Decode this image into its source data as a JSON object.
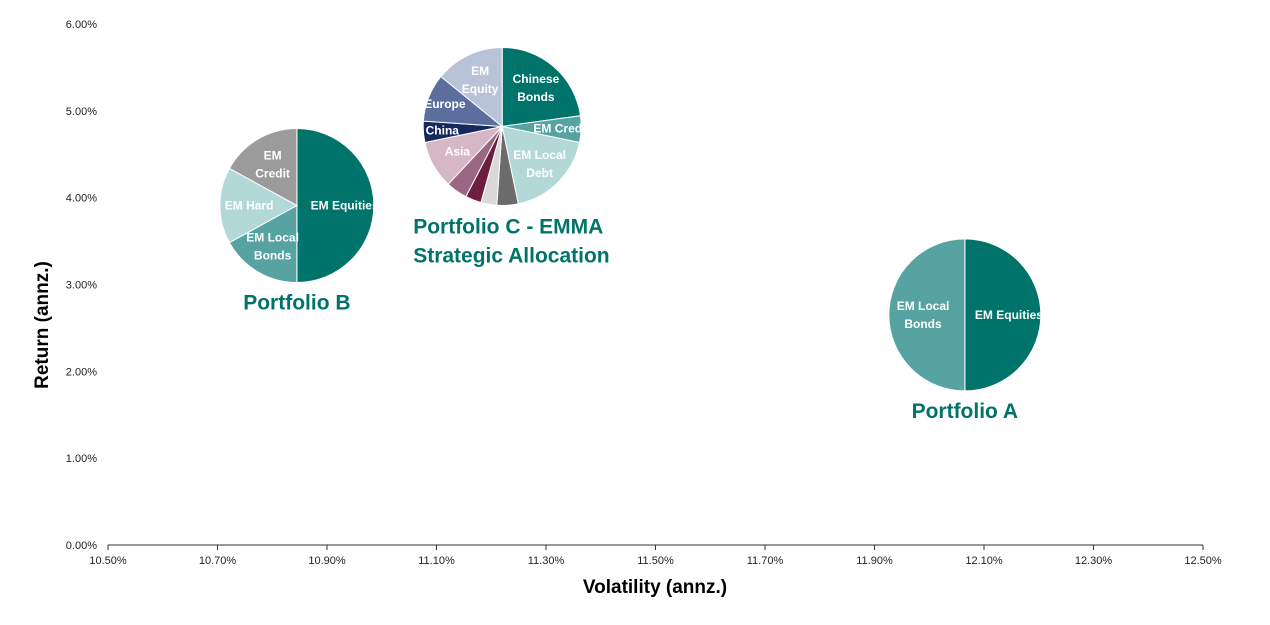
{
  "chart_data": {
    "type": "scatter",
    "subtype": "pie-bubbles",
    "title": "",
    "xlabel": "Volatility (annz.)",
    "ylabel": "Return (annz.)",
    "xlim": [
      0.105,
      0.125
    ],
    "ylim": [
      0.0,
      0.06
    ],
    "x_ticks": [
      0.105,
      0.107,
      0.109,
      0.111,
      0.113,
      0.115,
      0.117,
      0.119,
      0.121,
      0.123,
      0.125
    ],
    "x_tick_labels": [
      "10.50%",
      "10.70%",
      "10.90%",
      "11.10%",
      "11.30%",
      "11.50%",
      "11.70%",
      "11.90%",
      "12.10%",
      "12.30%",
      "12.50%"
    ],
    "y_ticks": [
      0.0,
      0.01,
      0.02,
      0.03,
      0.04,
      0.05,
      0.06
    ],
    "y_tick_labels": [
      "0.00%",
      "1.00%",
      "2.00%",
      "3.00%",
      "4.00%",
      "5.00%",
      "6.00%"
    ],
    "grid": false,
    "legend": "none",
    "label_color": "#00736A",
    "points": [
      {
        "name": "Portfolio A",
        "label_lines": [
          "Portfolio A"
        ],
        "x": 0.12065,
        "y": 0.0265,
        "slices": [
          {
            "label_lines": [
              "EM Equities"
            ],
            "value": 50,
            "color": "#00736A",
            "text_color": "#ffffff"
          },
          {
            "label_lines": [
              "EM Local",
              "Bonds"
            ],
            "value": 50,
            "color": "#56A3A2",
            "text_color": "#ffffff"
          }
        ]
      },
      {
        "name": "Portfolio B",
        "label_lines": [
          "Portfolio B"
        ],
        "x": 0.10845,
        "y": 0.0391,
        "slices": [
          {
            "label_lines": [
              "EM Equities"
            ],
            "value": 50,
            "color": "#00736A",
            "text_color": "#ffffff"
          },
          {
            "label_lines": [
              "EM Local",
              "Bonds"
            ],
            "value": 17,
            "color": "#56A3A2",
            "text_color": "#ffffff"
          },
          {
            "label_lines": [
              "EM Hard"
            ],
            "value": 16,
            "color": "#B3D8D8",
            "text_color": "#ffffff"
          },
          {
            "label_lines": [
              "EM",
              "Credit"
            ],
            "value": 17,
            "color": "#9B9B9B",
            "text_color": "#ffffff"
          }
        ]
      },
      {
        "name": "Portfolio C - EMMA Strategic Allocation",
        "label_lines": [
          "Portfolio C - EMMA",
          "Strategic Allocation"
        ],
        "x": 0.1122,
        "y": 0.0482,
        "slices": [
          {
            "label_lines": [
              "Chinese",
              "Bonds"
            ],
            "value": 21,
            "color": "#00736A",
            "text_color": "#ffffff"
          },
          {
            "label_lines": [
              "EM Credit"
            ],
            "value": 5,
            "color": "#56A3A2",
            "text_color": "#ffffff"
          },
          {
            "label_lines": [
              "EM Local",
              "Debt"
            ],
            "value": 17,
            "color": "#B3D8D8",
            "text_color": "#ffffff"
          },
          {
            "label_lines": [],
            "value": 4,
            "color": "#6B6B6B",
            "text_color": "#ffffff"
          },
          {
            "label_lines": [],
            "value": 3,
            "color": "#D9D9D9",
            "text_color": "#ffffff"
          },
          {
            "label_lines": [],
            "value": 3,
            "color": "#6E1F3F",
            "text_color": "#ffffff"
          },
          {
            "label_lines": [],
            "value": 4,
            "color": "#9B6682",
            "text_color": "#ffffff"
          },
          {
            "label_lines": [
              "Asia"
            ],
            "value": 9,
            "color": "#D5B7C6",
            "text_color": "#ffffff"
          },
          {
            "label_lines": [
              "China"
            ],
            "value": 4,
            "color": "#17285E",
            "text_color": "#ffffff"
          },
          {
            "label_lines": [
              "Europe"
            ],
            "value": 9,
            "color": "#5B6E9E",
            "text_color": "#ffffff"
          },
          {
            "label_lines": [
              "EM",
              "Equity"
            ],
            "value": 13,
            "color": "#B8C3D7",
            "text_color": "#ffffff"
          }
        ]
      }
    ]
  }
}
